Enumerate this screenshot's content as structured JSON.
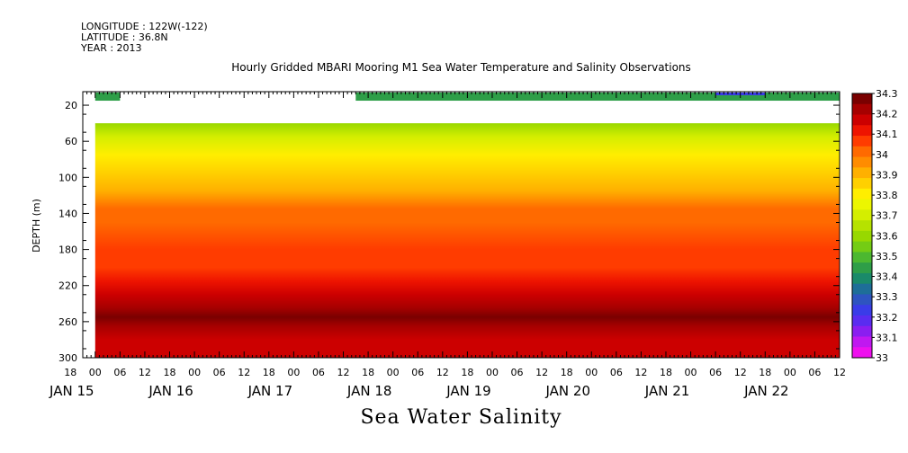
{
  "header": {
    "longitude": "LONGITUDE : 122W(-122)",
    "latitude": "LATITUDE : 36.8N",
    "year": "YEAR : 2013"
  },
  "chart_data": {
    "type": "heatmap",
    "title": "Hourly Gridded MBARI Mooring M1 Sea Water Temperature and Salinity Observations",
    "xlabel": "Sea Water Salinity",
    "ylabel": "DEPTH (m)",
    "yticks": [
      "20",
      "60",
      "100",
      "140",
      "180",
      "220",
      "260",
      "300"
    ],
    "ylim": [
      300,
      5
    ],
    "x_hour_labels": [
      "18",
      "00",
      "06",
      "12",
      "18",
      "00",
      "06",
      "12",
      "18",
      "00",
      "06",
      "12",
      "18",
      "00",
      "06",
      "12",
      "18",
      "00",
      "06",
      "12",
      "18",
      "00",
      "06",
      "12",
      "18",
      "00",
      "06",
      "12",
      "18",
      "00",
      "06",
      "12"
    ],
    "x_day_labels": [
      "JAN 15",
      "JAN 16",
      "JAN 17",
      "JAN 18",
      "JAN 19",
      "JAN 20",
      "JAN 21",
      "JAN 22"
    ],
    "colorbar": {
      "labels": [
        "34.3",
        "34.2",
        "34.1",
        "34",
        "33.9",
        "33.8",
        "33.7",
        "33.6",
        "33.5",
        "33.4",
        "33.3",
        "33.2",
        "33.1",
        "33"
      ],
      "colors": [
        "#7a0000",
        "#a60000",
        "#cc0000",
        "#ee1400",
        "#ff3c00",
        "#ff6a00",
        "#ff8c00",
        "#ffb000",
        "#ffd000",
        "#ffee00",
        "#ecf600",
        "#d4ee00",
        "#b6e200",
        "#98d800",
        "#74cc14",
        "#4cb830",
        "#2e9e48",
        "#1a8a6a",
        "#1e6e98",
        "#2e54c0",
        "#3a3ce8",
        "#5a2cf0",
        "#8a1ef0",
        "#c018f0",
        "#ee10ee"
      ]
    },
    "depth_profile": {
      "depth": [
        10,
        40,
        55,
        75,
        95,
        115,
        135,
        150,
        180,
        200,
        215,
        230,
        245,
        255,
        265,
        280,
        300
      ],
      "salinity": [
        33.37,
        33.55,
        33.68,
        33.77,
        33.85,
        33.92,
        33.98,
        34.02,
        34.05,
        34.08,
        34.12,
        34.18,
        34.22,
        34.25,
        34.22,
        34.18,
        34.14
      ]
    },
    "surface_series": {
      "segments": [
        "JAN 15 00 - JAN 15 06",
        "JAN 17 15 - JAN 22 12"
      ],
      "salinity": 33.4
    }
  }
}
